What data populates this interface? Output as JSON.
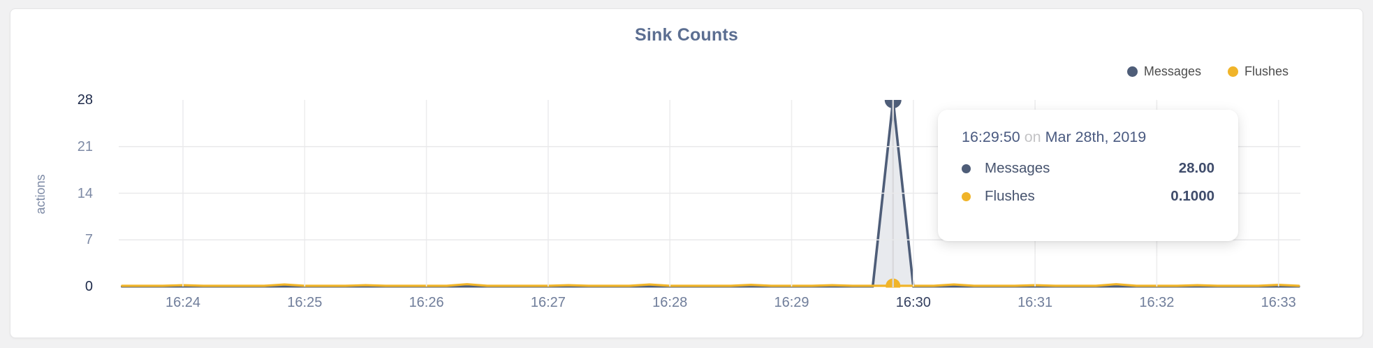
{
  "chart_data": {
    "type": "area",
    "title": "Sink Counts",
    "ylabel": "actions",
    "ylim": [
      0,
      28
    ],
    "y_ticks": [
      0,
      7,
      14,
      21,
      28
    ],
    "x_ticks": [
      "16:24",
      "16:25",
      "16:26",
      "16:27",
      "16:28",
      "16:29",
      "16:30",
      "16:31",
      "16:32",
      "16:33"
    ],
    "highlighted_x_tick": "16:30",
    "x_start": "16:23:30",
    "x_interval_seconds": 10,
    "grid": "on",
    "legend_position": "top-right",
    "series": [
      {
        "name": "Messages",
        "color": "#4e5d78",
        "fill": "rgba(78,93,120,0.13)",
        "values": [
          0,
          0,
          0,
          0,
          0,
          0,
          0,
          0,
          0,
          0,
          0,
          0,
          0,
          0,
          0,
          0,
          0,
          0,
          0,
          0,
          0,
          0,
          0,
          0,
          0,
          0,
          0,
          0,
          0,
          0,
          0,
          0,
          0,
          0,
          0,
          0,
          0,
          0,
          28,
          0,
          0,
          0,
          0,
          0,
          0,
          0,
          0,
          0,
          0,
          0,
          0,
          0,
          0,
          0,
          0,
          0,
          0,
          0,
          0
        ]
      },
      {
        "name": "Flushes",
        "color": "#f0b429",
        "fill": "none",
        "values": [
          0.1,
          0.1,
          0.1,
          0.2,
          0.1,
          0.1,
          0.1,
          0.1,
          0.3,
          0.1,
          0.1,
          0.1,
          0.2,
          0.1,
          0.1,
          0.1,
          0.1,
          0.35,
          0.1,
          0.1,
          0.1,
          0.1,
          0.2,
          0.1,
          0.1,
          0.1,
          0.3,
          0.1,
          0.1,
          0.1,
          0.1,
          0.25,
          0.1,
          0.1,
          0.1,
          0.2,
          0.1,
          0.1,
          0.1,
          0.1,
          0.1,
          0.3,
          0.1,
          0.1,
          0.1,
          0.2,
          0.1,
          0.1,
          0.1,
          0.35,
          0.1,
          0.1,
          0.1,
          0.2,
          0.1,
          0.1,
          0.1,
          0.25,
          0.1
        ]
      }
    ],
    "hover": {
      "index": 38,
      "time": "16:29:50",
      "preposition": "on",
      "date": "Mar 28th, 2019",
      "rows": [
        {
          "name": "Messages",
          "value": "28.00"
        },
        {
          "name": "Flushes",
          "value": "0.1000"
        }
      ]
    }
  }
}
